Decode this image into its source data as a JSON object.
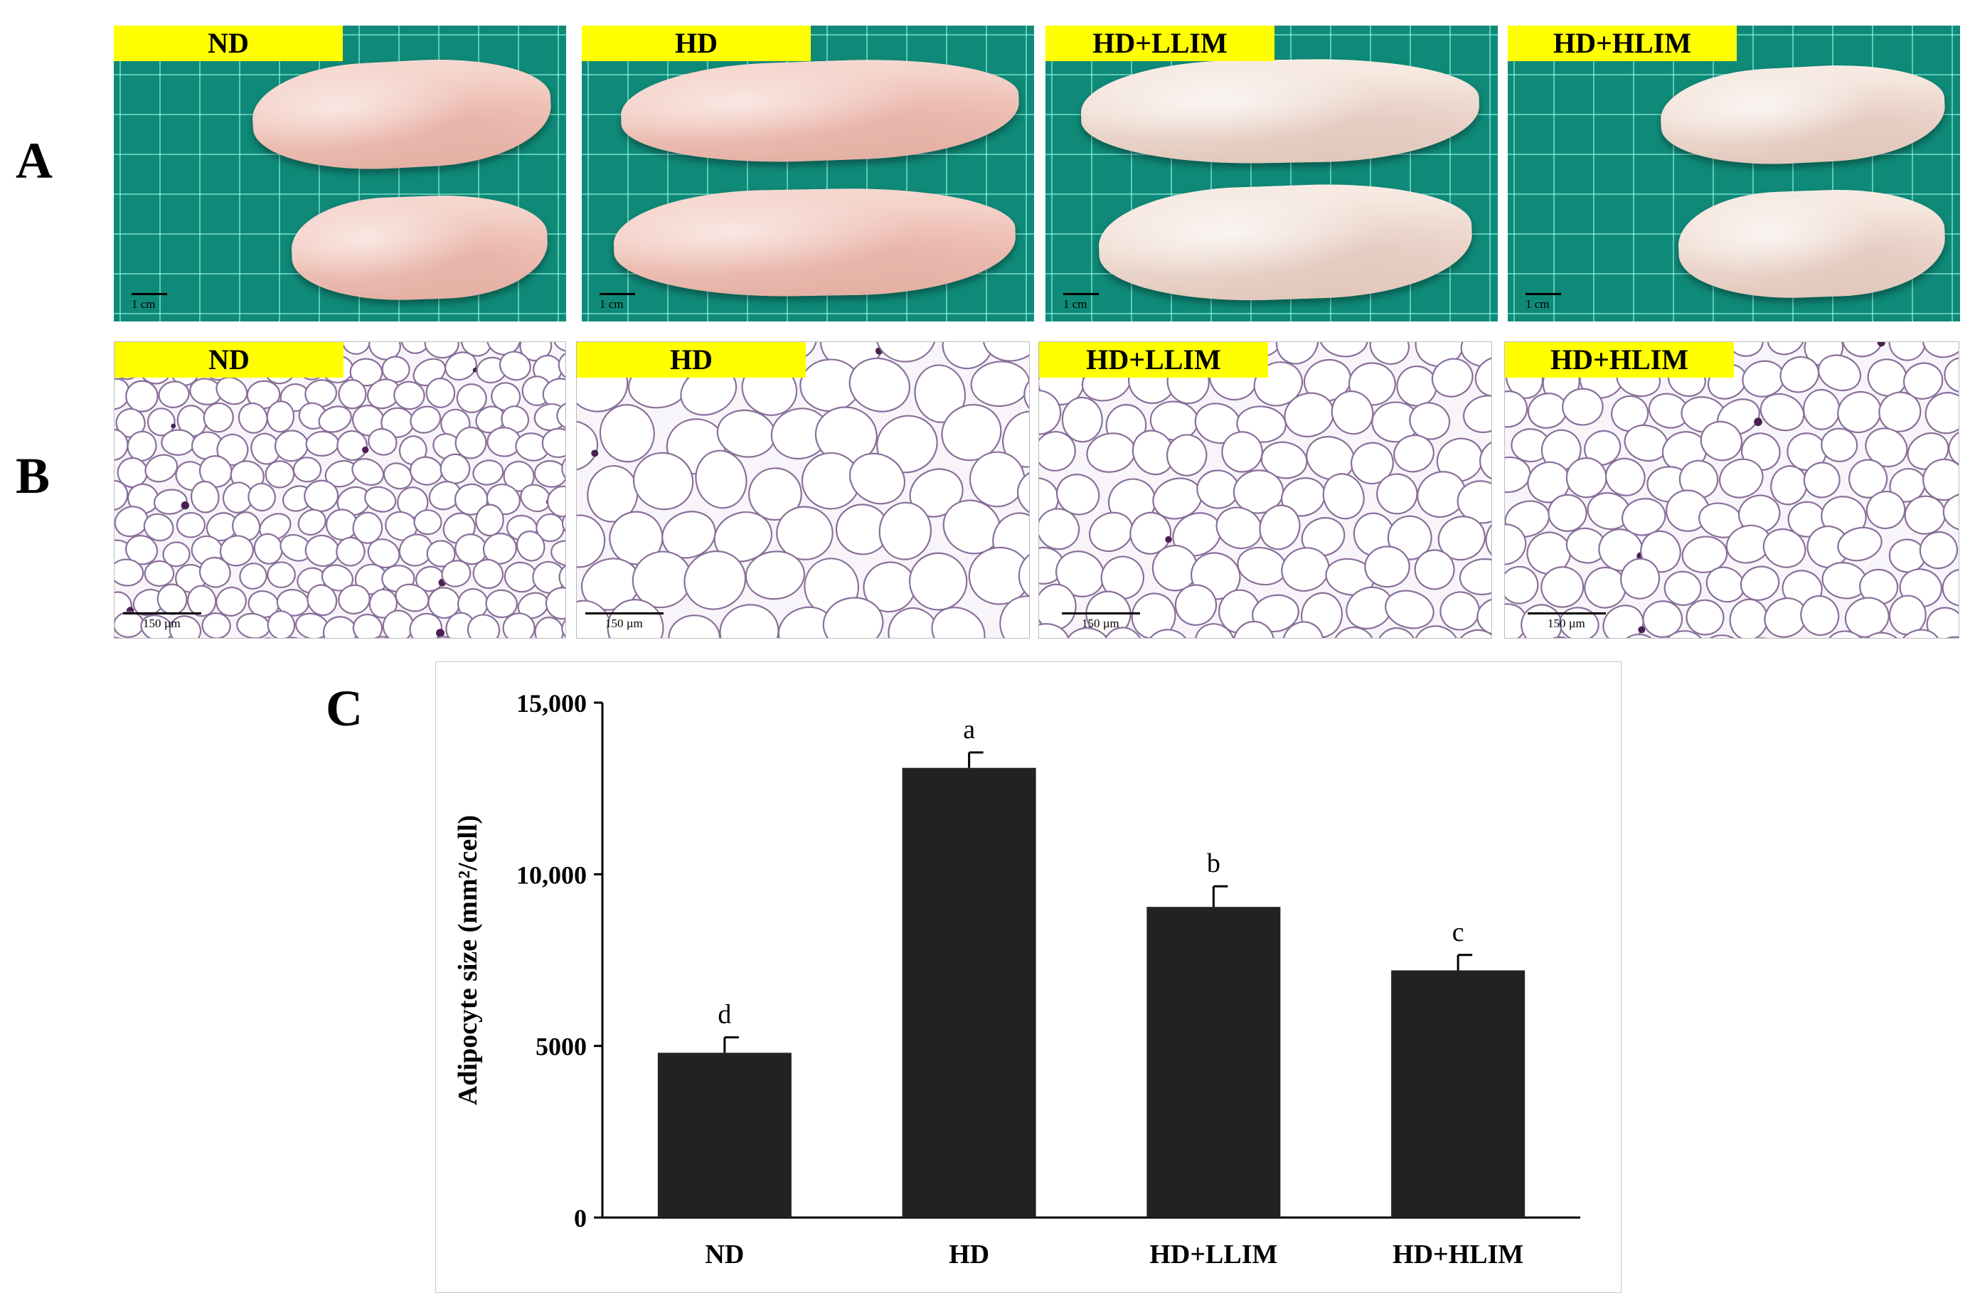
{
  "panel_letters": {
    "a": "A",
    "b": "B",
    "c": "C"
  },
  "groups": [
    "ND",
    "HD",
    "HD+LLIM",
    "HD+HLIM"
  ],
  "scale_bars": {
    "photo": "1 cm",
    "histo": "150 µm"
  },
  "chart_data": {
    "type": "bar",
    "categories": [
      "ND",
      "HD",
      "HD+LLIM",
      "HD+HLIM"
    ],
    "values": [
      4800,
      13100,
      9050,
      7200
    ],
    "errors": [
      450,
      450,
      600,
      450
    ],
    "significance_letters": [
      "d",
      "a",
      "b",
      "c"
    ],
    "ylabel": "Adipocyte size (mm²/cell)",
    "ytick_labels": [
      "0",
      "5000",
      "10,000",
      "15,000"
    ],
    "yticks": [
      0,
      5000,
      10000,
      15000
    ],
    "ylim": [
      0,
      15000
    ],
    "bar_color": "#222222",
    "grid": false,
    "legend": "none"
  }
}
